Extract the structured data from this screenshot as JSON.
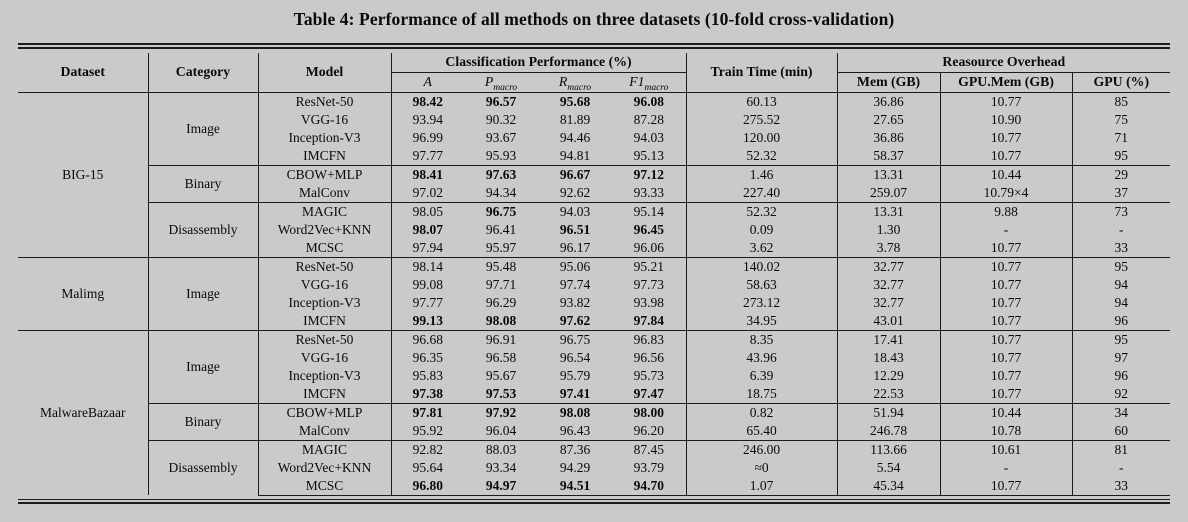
{
  "caption": "Table 4: Performance of all methods on three datasets (10-fold cross-validation)",
  "header": {
    "dataset": "Dataset",
    "category": "Category",
    "model": "Model",
    "classification_group": "Classification Performance (%)",
    "train_time": "Train Time (min)",
    "resource_group": "Reasource Overhead",
    "sub_cols": [
      {
        "label": "A",
        "sub": ""
      },
      {
        "label": "P",
        "sub": "macro"
      },
      {
        "label": "R",
        "sub": "macro"
      },
      {
        "label": "F1",
        "sub": "macro"
      }
    ],
    "mem": "Mem (GB)",
    "gpu_mem": "GPU.Mem (GB)",
    "gpu": "GPU (%)"
  },
  "groups": [
    {
      "dataset": "BIG-15",
      "categories": [
        {
          "name": "Image",
          "rows": [
            {
              "model": "ResNet-50",
              "a": "98.42",
              "p": "96.57",
              "r": "95.68",
              "f1": "96.08",
              "train": "60.13",
              "mem": "36.86",
              "gpu_mem": "10.77",
              "gpu": "85",
              "bold": [
                "a",
                "p",
                "r",
                "f1"
              ]
            },
            {
              "model": "VGG-16",
              "a": "93.94",
              "p": "90.32",
              "r": "81.89",
              "f1": "87.28",
              "train": "275.52",
              "mem": "27.65",
              "gpu_mem": "10.90",
              "gpu": "75",
              "bold": []
            },
            {
              "model": "Inception-V3",
              "a": "96.99",
              "p": "93.67",
              "r": "94.46",
              "f1": "94.03",
              "train": "120.00",
              "mem": "36.86",
              "gpu_mem": "10.77",
              "gpu": "71",
              "bold": []
            },
            {
              "model": "IMCFN",
              "a": "97.77",
              "p": "95.93",
              "r": "94.81",
              "f1": "95.13",
              "train": "52.32",
              "mem": "58.37",
              "gpu_mem": "10.77",
              "gpu": "95",
              "bold": []
            }
          ]
        },
        {
          "name": "Binary",
          "rows": [
            {
              "model": "CBOW+MLP",
              "a": "98.41",
              "p": "97.63",
              "r": "96.67",
              "f1": "97.12",
              "train": "1.46",
              "mem": "13.31",
              "gpu_mem": "10.44",
              "gpu": "29",
              "bold": [
                "a",
                "p",
                "r",
                "f1"
              ]
            },
            {
              "model": "MalConv",
              "a": "97.02",
              "p": "94.34",
              "r": "92.62",
              "f1": "93.33",
              "train": "227.40",
              "mem": "259.07",
              "gpu_mem": "10.79×4",
              "gpu": "37",
              "bold": []
            }
          ]
        },
        {
          "name": "Disassembly",
          "rows": [
            {
              "model": "MAGIC",
              "a": "98.05",
              "p": "96.75",
              "r": "94.03",
              "f1": "95.14",
              "train": "52.32",
              "mem": "13.31",
              "gpu_mem": "9.88",
              "gpu": "73",
              "bold": [
                "p"
              ]
            },
            {
              "model": "Word2Vec+KNN",
              "a": "98.07",
              "p": "96.41",
              "r": "96.51",
              "f1": "96.45",
              "train": "0.09",
              "mem": "1.30",
              "gpu_mem": "-",
              "gpu": "-",
              "bold": [
                "a",
                "r",
                "f1"
              ]
            },
            {
              "model": "MCSC",
              "a": "97.94",
              "p": "95.97",
              "r": "96.17",
              "f1": "96.06",
              "train": "3.62",
              "mem": "3.78",
              "gpu_mem": "10.77",
              "gpu": "33",
              "bold": []
            }
          ]
        }
      ]
    },
    {
      "dataset": "Malimg",
      "categories": [
        {
          "name": "Image",
          "rows": [
            {
              "model": "ResNet-50",
              "a": "98.14",
              "p": "95.48",
              "r": "95.06",
              "f1": "95.21",
              "train": "140.02",
              "mem": "32.77",
              "gpu_mem": "10.77",
              "gpu": "95",
              "bold": []
            },
            {
              "model": "VGG-16",
              "a": "99.08",
              "p": "97.71",
              "r": "97.74",
              "f1": "97.73",
              "train": "58.63",
              "mem": "32.77",
              "gpu_mem": "10.77",
              "gpu": "94",
              "bold": []
            },
            {
              "model": "Inception-V3",
              "a": "97.77",
              "p": "96.29",
              "r": "93.82",
              "f1": "93.98",
              "train": "273.12",
              "mem": "32.77",
              "gpu_mem": "10.77",
              "gpu": "94",
              "bold": []
            },
            {
              "model": "IMCFN",
              "a": "99.13",
              "p": "98.08",
              "r": "97.62",
              "f1": "97.84",
              "train": "34.95",
              "mem": "43.01",
              "gpu_mem": "10.77",
              "gpu": "96",
              "bold": [
                "a",
                "p",
                "r",
                "f1"
              ]
            }
          ]
        }
      ]
    },
    {
      "dataset": "MalwareBazaar",
      "categories": [
        {
          "name": "Image",
          "rows": [
            {
              "model": "ResNet-50",
              "a": "96.68",
              "p": "96.91",
              "r": "96.75",
              "f1": "96.83",
              "train": "8.35",
              "mem": "17.41",
              "gpu_mem": "10.77",
              "gpu": "95",
              "bold": []
            },
            {
              "model": "VGG-16",
              "a": "96.35",
              "p": "96.58",
              "r": "96.54",
              "f1": "96.56",
              "train": "43.96",
              "mem": "18.43",
              "gpu_mem": "10.77",
              "gpu": "97",
              "bold": []
            },
            {
              "model": "Inception-V3",
              "a": "95.83",
              "p": "95.67",
              "r": "95.79",
              "f1": "95.73",
              "train": "6.39",
              "mem": "12.29",
              "gpu_mem": "10.77",
              "gpu": "96",
              "bold": []
            },
            {
              "model": "IMCFN",
              "a": "97.38",
              "p": "97.53",
              "r": "97.41",
              "f1": "97.47",
              "train": "18.75",
              "mem": "22.53",
              "gpu_mem": "10.77",
              "gpu": "92",
              "bold": [
                "a",
                "p",
                "r",
                "f1"
              ]
            }
          ]
        },
        {
          "name": "Binary",
          "rows": [
            {
              "model": "CBOW+MLP",
              "a": "97.81",
              "p": "97.92",
              "r": "98.08",
              "f1": "98.00",
              "train": "0.82",
              "mem": "51.94",
              "gpu_mem": "10.44",
              "gpu": "34",
              "bold": [
                "a",
                "p",
                "r",
                "f1"
              ]
            },
            {
              "model": "MalConv",
              "a": "95.92",
              "p": "96.04",
              "r": "96.43",
              "f1": "96.20",
              "train": "65.40",
              "mem": "246.78",
              "gpu_mem": "10.78",
              "gpu": "60",
              "bold": []
            }
          ]
        },
        {
          "name": "Disassembly",
          "rows": [
            {
              "model": "MAGIC",
              "a": "92.82",
              "p": "88.03",
              "r": "87.36",
              "f1": "87.45",
              "train": "246.00",
              "mem": "113.66",
              "gpu_mem": "10.61",
              "gpu": "81",
              "bold": []
            },
            {
              "model": "Word2Vec+KNN",
              "a": "95.64",
              "p": "93.34",
              "r": "94.29",
              "f1": "93.79",
              "train": "≈0",
              "mem": "5.54",
              "gpu_mem": "-",
              "gpu": "-",
              "bold": []
            },
            {
              "model": "MCSC",
              "a": "96.80",
              "p": "94.97",
              "r": "94.51",
              "f1": "94.70",
              "train": "1.07",
              "mem": "45.34",
              "gpu_mem": "10.77",
              "gpu": "33",
              "bold": [
                "a",
                "p",
                "r",
                "f1"
              ]
            }
          ]
        }
      ]
    }
  ],
  "colors": {
    "page_bg": "#cacaca",
    "line": "#1c1c1c",
    "text": "#0a0a0a"
  }
}
